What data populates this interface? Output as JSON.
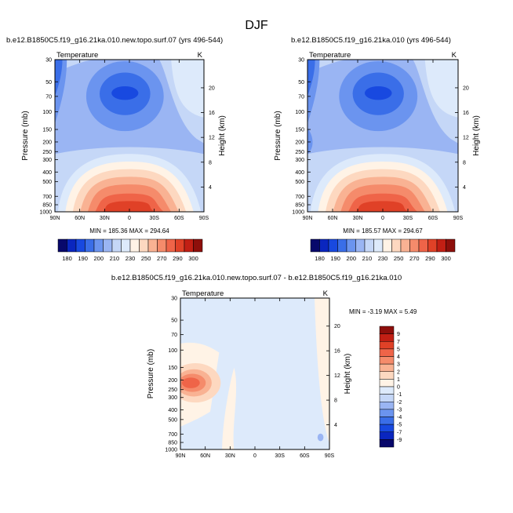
{
  "figure": {
    "title": "DJF"
  },
  "chart_data": [
    {
      "type": "heatmap",
      "title": "b.e12.B1850C5.f19_g16.21ka.010.new.topo.surf.07 (yrs 496-544)",
      "left_label": "Temperature",
      "right_label": "K",
      "xlabel": "",
      "ylabel": "Pressure (mb)",
      "y2label": "Height (km)",
      "x_ticks": [
        "90N",
        "60N",
        "30N",
        "0",
        "30S",
        "60S",
        "90S"
      ],
      "y_ticks": [
        "30",
        "50",
        "70",
        "100",
        "150",
        "200",
        "250",
        "300",
        "400",
        "500",
        "700",
        "850",
        "1000"
      ],
      "y2_ticks": [
        "20",
        "16",
        "12",
        "8",
        "4"
      ],
      "stats": "MIN = 185.36   MAX = 294.64",
      "colorbar": {
        "orientation": "horizontal",
        "labels": [
          "180",
          "190",
          "200",
          "210",
          "230",
          "250",
          "270",
          "290",
          "300"
        ],
        "colors": [
          "#08086b",
          "#0a26bf",
          "#1849e0",
          "#3a6ee8",
          "#6b94ef",
          "#9ab5f3",
          "#c5d7f7",
          "#ddeafb",
          "#fff3e6",
          "#fdd8c0",
          "#f9b293",
          "#f58b6b",
          "#ef6448",
          "#e04127",
          "#c21f14",
          "#8e0f0b"
        ]
      },
      "fields": [
        {
          "shape": "background",
          "level": "light-blue",
          "color": "#c5d7f7"
        },
        {
          "shape": "tropopause-cold-core",
          "level": "mid-blue",
          "color": "#9ab5f3"
        },
        {
          "shape": "cold-core",
          "level": "blue",
          "color": "#6b94ef"
        },
        {
          "shape": "cold-core-inner",
          "level": "dark-blue",
          "color": "#3a6ee8"
        },
        {
          "shape": "cold-core-min",
          "level": "deep-blue",
          "color": "#1849e0"
        },
        {
          "shape": "polar-vortex-north",
          "level": "dark-blue",
          "color": "#3a6ee8"
        },
        {
          "shape": "warm-surface-layers",
          "level": "warm",
          "colors": [
            "#fff3e6",
            "#fdd8c0",
            "#f9b293",
            "#f58b6b",
            "#ef6448"
          ]
        }
      ]
    },
    {
      "type": "heatmap",
      "title": "b.e12.B1850C5.f19_g16.21ka.010 (yrs 496-544)",
      "left_label": "Temperature",
      "right_label": "K",
      "xlabel": "",
      "ylabel": "Pressure (mb)",
      "y2label": "Height (km)",
      "x_ticks": [
        "90N",
        "60N",
        "30N",
        "0",
        "30S",
        "60S",
        "90S"
      ],
      "y_ticks": [
        "30",
        "50",
        "70",
        "100",
        "150",
        "200",
        "250",
        "300",
        "400",
        "500",
        "700",
        "850",
        "1000"
      ],
      "y2_ticks": [
        "20",
        "16",
        "12",
        "8",
        "4"
      ],
      "stats": "MIN = 185.57   MAX = 294.67",
      "colorbar": {
        "orientation": "horizontal",
        "labels": [
          "180",
          "190",
          "200",
          "210",
          "230",
          "250",
          "270",
          "290",
          "300"
        ],
        "colors": [
          "#08086b",
          "#0a26bf",
          "#1849e0",
          "#3a6ee8",
          "#6b94ef",
          "#9ab5f3",
          "#c5d7f7",
          "#ddeafb",
          "#fff3e6",
          "#fdd8c0",
          "#f9b293",
          "#f58b6b",
          "#ef6448",
          "#e04127",
          "#c21f14",
          "#8e0f0b"
        ]
      }
    },
    {
      "type": "heatmap",
      "title": "b.e12.B1850C5.f19_g16.21ka.010.new.topo.surf.07 - b.e12.B1850C5.f19_g16.21ka.010",
      "left_label": "Temperature",
      "right_label": "K",
      "xlabel": "",
      "ylabel": "Pressure (mb)",
      "y2label": "Height (km)",
      "x_ticks": [
        "90N",
        "60N",
        "30N",
        "0",
        "30S",
        "60S",
        "90S"
      ],
      "y_ticks": [
        "30",
        "50",
        "70",
        "100",
        "150",
        "200",
        "250",
        "300",
        "400",
        "500",
        "700",
        "850",
        "1000"
      ],
      "y2_ticks": [
        "20",
        "16",
        "12",
        "8",
        "4"
      ],
      "stats": "MIN =  -3.19   MAX =   5.49",
      "colorbar": {
        "orientation": "vertical",
        "labels": [
          "9",
          "7",
          "5",
          "4",
          "3",
          "2",
          "1",
          "0",
          "-1",
          "-2",
          "-3",
          "-4",
          "-5",
          "-7",
          "-9"
        ],
        "colors": [
          "#8e0f0b",
          "#c21f14",
          "#e04127",
          "#ef6448",
          "#f58b6b",
          "#f9b293",
          "#fdd8c0",
          "#fff3e6",
          "#ddeafb",
          "#c5d7f7",
          "#9ab5f3",
          "#6b94ef",
          "#3a6ee8",
          "#1849e0",
          "#0a26bf",
          "#08086b"
        ]
      },
      "fields": [
        {
          "shape": "background",
          "level": "0 to -1",
          "color": "#ddeafb"
        },
        {
          "shape": "positive-regions",
          "level": "0 to 1",
          "color": "#fff3e6"
        },
        {
          "shape": "anomaly-60N-200mb",
          "levels": [
            "1 to 2",
            "2 to 3",
            "3 to 4",
            "4 to 5"
          ],
          "colors": [
            "#fdd8c0",
            "#f9b293",
            "#f58b6b",
            "#ef6448"
          ]
        }
      ]
    }
  ]
}
